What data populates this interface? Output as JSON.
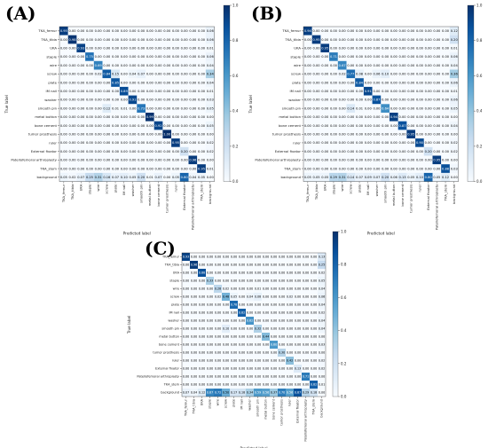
{
  "panels": [
    {
      "label": "(A)"
    },
    {
      "label": "(B)"
    },
    {
      "label": "(C)"
    }
  ],
  "chart_data": [
    {
      "type": "heatmap",
      "panel": "(A)",
      "xlabel": "Predicted label",
      "ylabel": "True label",
      "labels": [
        "TKA_femur",
        "TKA_tibia",
        "UKA",
        "staple",
        "wire",
        "screw",
        "plate",
        "IM nail",
        "washer",
        "smooth pin",
        "metal button",
        "bone cement",
        "tumor prosthesis",
        "ruler",
        "External fixator",
        "Patellofemoral arthroplasty",
        "TKA_stem",
        "background"
      ],
      "colorbar_ticks": [
        0.0,
        0.2,
        0.4,
        0.6,
        0.8,
        1.0
      ],
      "matrix": [
        [
          0.95,
          0,
          0,
          0,
          0,
          0,
          0,
          0,
          0,
          0,
          0,
          0,
          0,
          0,
          0,
          0,
          0,
          0.06
        ],
        [
          0,
          0.98,
          0,
          0,
          0,
          0,
          0,
          0,
          0,
          0,
          0,
          0,
          0,
          0,
          0,
          0,
          0,
          0.06
        ],
        [
          0,
          0,
          0.93,
          0,
          0,
          0,
          0,
          0,
          0,
          0,
          0,
          0,
          0,
          0,
          0,
          0,
          0,
          0.01
        ],
        [
          0,
          0,
          0,
          0.75,
          0,
          0,
          0,
          0,
          0,
          0,
          0,
          0,
          0,
          0,
          0,
          0,
          0,
          0.06
        ],
        [
          0,
          0,
          0,
          0,
          0.69,
          0,
          0,
          0,
          0,
          0,
          0,
          0,
          0,
          0,
          0,
          0,
          0,
          0.04
        ],
        [
          0,
          0,
          0,
          0,
          0.02,
          0.84,
          0.15,
          0,
          0.04,
          0.07,
          0,
          0,
          0,
          0,
          0,
          0,
          0,
          0.34
        ],
        [
          0,
          0,
          0,
          0,
          0,
          0,
          0.85,
          0,
          0,
          0,
          0,
          0,
          0,
          0,
          0,
          0,
          0,
          0.04
        ],
        [
          0,
          0,
          0,
          0,
          0,
          0,
          0,
          0.89,
          0,
          0,
          0,
          0,
          0,
          0,
          0,
          0,
          0,
          0.01
        ],
        [
          0,
          0,
          0,
          0,
          0,
          0,
          0,
          0,
          0.91,
          0,
          0,
          0,
          0,
          0,
          0,
          0,
          0,
          0.03
        ],
        [
          0,
          0,
          0,
          0,
          0,
          0.12,
          0.01,
          0.01,
          0,
          0.73,
          0,
          0,
          0,
          0,
          0,
          0,
          0,
          0.05
        ],
        [
          0,
          0,
          0,
          0,
          0,
          0,
          0,
          0,
          0,
          0,
          0.99,
          0,
          0,
          0,
          0,
          0,
          0,
          0
        ],
        [
          0,
          0,
          0,
          0,
          0,
          0,
          0,
          0,
          0,
          0,
          0,
          0.92,
          0,
          0,
          0,
          0,
          0,
          0.05
        ],
        [
          0,
          0,
          0,
          0,
          0,
          0,
          0,
          0,
          0,
          0,
          0,
          0,
          1.0,
          0,
          0,
          0,
          0,
          0
        ],
        [
          0,
          0,
          0,
          0,
          0,
          0,
          0,
          0,
          0,
          0,
          0,
          0,
          0,
          0.95,
          0,
          0,
          0,
          0.02
        ],
        [
          0,
          0,
          0,
          0,
          0,
          0,
          0,
          0,
          0,
          0,
          0,
          0,
          0,
          0,
          0.2,
          0,
          0,
          0.02
        ],
        [
          0,
          0,
          0,
          0,
          0,
          0,
          0,
          0,
          0,
          0,
          0,
          0,
          0,
          0,
          0,
          0.96,
          0,
          0
        ],
        [
          0,
          0,
          0,
          0,
          0,
          0,
          0,
          0,
          0,
          0,
          0,
          0,
          0,
          0,
          0,
          0,
          0.95,
          0.01
        ],
        [
          0.05,
          0.02,
          0.07,
          0.25,
          0.31,
          0.16,
          0.07,
          0.1,
          0.05,
          0.2,
          0.01,
          0.07,
          0,
          0.05,
          0.8,
          0.04,
          0.05,
          0
        ]
      ]
    },
    {
      "type": "heatmap",
      "panel": "(B)",
      "xlabel": "Predicted label",
      "ylabel": "True label",
      "labels": [
        "TKA_femur",
        "TKA_tibia",
        "UKA",
        "staple",
        "wire",
        "screw",
        "plate",
        "IM nail",
        "washer",
        "smooth pin",
        "metal button",
        "bone cement",
        "tumor prosthesis",
        "ruler",
        "External fixator",
        "Patellofemoral arthroplasty",
        "TKA_stem",
        "background"
      ],
      "colorbar_ticks": [
        0.0,
        0.2,
        0.4,
        0.6,
        0.8,
        1.0
      ],
      "matrix": [
        [
          0.94,
          0,
          0,
          0,
          0,
          0,
          0,
          0,
          0,
          0,
          0,
          0,
          0,
          0,
          0,
          0,
          0,
          0.12
        ],
        [
          0,
          0.95,
          0,
          0,
          0,
          0,
          0,
          0,
          0,
          0,
          0,
          0,
          0,
          0,
          0,
          0,
          0,
          0.2
        ],
        [
          0,
          0,
          0.95,
          0,
          0,
          0,
          0,
          0,
          0,
          0,
          0,
          0,
          0,
          0,
          0,
          0,
          0,
          0.01
        ],
        [
          0,
          0,
          0,
          0.71,
          0,
          0,
          0,
          0,
          0,
          0,
          0,
          0,
          0,
          0,
          0,
          0,
          0,
          0.06
        ],
        [
          0,
          0,
          0,
          0,
          0.67,
          0,
          0,
          0,
          0,
          0,
          0,
          0,
          0,
          0,
          0,
          0,
          0,
          0.04
        ],
        [
          0,
          0,
          0,
          0,
          0.02,
          0.77,
          0.08,
          0,
          0.06,
          0.1,
          0,
          0,
          0,
          0,
          0,
          0,
          0,
          0.36
        ],
        [
          0,
          0,
          0,
          0,
          0,
          0,
          0.84,
          0,
          0,
          0,
          0,
          0,
          0,
          0,
          0,
          0,
          0,
          0.06
        ],
        [
          0,
          0,
          0,
          0,
          0,
          0,
          0,
          0.91,
          0,
          0,
          0,
          0,
          0,
          0,
          0,
          0,
          0,
          0.01
        ],
        [
          0,
          0,
          0,
          0,
          0,
          0,
          0,
          0,
          0.87,
          0,
          0,
          0,
          0,
          0,
          0,
          0,
          0,
          0.06
        ],
        [
          0,
          0,
          0,
          0,
          0,
          0.14,
          0.01,
          0,
          0,
          0.64,
          0,
          0,
          0,
          0,
          0,
          0,
          0,
          0.05
        ],
        [
          0,
          0,
          0,
          0,
          0,
          0,
          0,
          0,
          0,
          0,
          0.94,
          0,
          0,
          0,
          0,
          0,
          0,
          0
        ],
        [
          0,
          0,
          0,
          0,
          0,
          0,
          0,
          0,
          0,
          0,
          0,
          0.87,
          0,
          0,
          0,
          0,
          0,
          0.04
        ],
        [
          0,
          0,
          0,
          0,
          0,
          0,
          0,
          0,
          0,
          0,
          0,
          0,
          0.95,
          0,
          0,
          0,
          0,
          0
        ],
        [
          0,
          0,
          0,
          0,
          0,
          0,
          0,
          0,
          0,
          0,
          0,
          0,
          0,
          0.9,
          0,
          0,
          0,
          0.02
        ],
        [
          0,
          0,
          0,
          0,
          0,
          0,
          0,
          0,
          0,
          0,
          0,
          0,
          0,
          0,
          0.2,
          0,
          0,
          0.02
        ],
        [
          0,
          0,
          0,
          0,
          0,
          0,
          0,
          0,
          0,
          0,
          0,
          0,
          0,
          0,
          0,
          0.95,
          0,
          0
        ],
        [
          0,
          0,
          0,
          0,
          0,
          0,
          0,
          0,
          0,
          0,
          0,
          0,
          0,
          0,
          0,
          0,
          0.88,
          0.03
        ],
        [
          0.05,
          0.05,
          0.05,
          0.29,
          0.31,
          0.14,
          0.07,
          0.09,
          0.07,
          0.2,
          0.06,
          0.13,
          0.05,
          0.1,
          0.8,
          0.05,
          0.12,
          0
        ]
      ]
    },
    {
      "type": "heatmap",
      "panel": "(C)",
      "xlabel": "Predicted label",
      "ylabel": "True label",
      "labels": [
        "TKA_femur",
        "TKA_tibia",
        "UKA",
        "staple",
        "wire",
        "screw",
        "plate",
        "IM nail",
        "washer",
        "smooth pin",
        "metal button",
        "bone cement",
        "tumor prosthesis",
        "ruler",
        "External fixator",
        "Patellofemoral arthroplasty",
        "TKA_stem",
        "background"
      ],
      "colorbar_ticks": [
        0.0,
        0.2,
        0.4,
        0.6,
        0.8,
        1.0
      ],
      "matrix": [
        [
          0.93,
          0,
          0,
          0,
          0,
          0,
          0,
          0,
          0,
          0,
          0,
          0,
          0,
          0,
          0,
          0,
          0,
          0.13
        ],
        [
          0,
          0.96,
          0,
          0,
          0,
          0,
          0,
          0,
          0,
          0,
          0,
          0,
          0,
          0,
          0,
          0,
          0,
          0.25
        ],
        [
          0,
          0,
          0.88,
          0,
          0,
          0,
          0,
          0,
          0,
          0,
          0,
          0,
          0,
          0,
          0,
          0,
          0,
          0.02
        ],
        [
          0,
          0,
          0,
          0.33,
          0,
          0,
          0,
          0,
          0,
          0,
          0,
          0,
          0,
          0,
          0,
          0,
          0,
          0.05
        ],
        [
          0,
          0,
          0,
          0,
          0.28,
          0.02,
          0,
          0,
          0,
          0.01,
          0,
          0,
          0,
          0,
          0,
          0,
          0,
          0.04
        ],
        [
          0,
          0,
          0,
          0,
          0.02,
          0.48,
          0.05,
          0,
          0.04,
          0.08,
          0,
          0,
          0,
          0.02,
          0,
          0,
          0,
          0.06
        ],
        [
          0,
          0,
          0,
          0,
          0,
          0,
          0.78,
          0,
          0,
          0,
          0,
          0,
          0,
          0,
          0,
          0,
          0,
          0.04
        ],
        [
          0,
          0,
          0,
          0,
          0,
          0,
          0,
          0.82,
          0,
          0,
          0,
          0,
          0,
          0,
          0,
          0,
          0,
          0.02
        ],
        [
          0,
          0,
          0,
          0,
          0,
          0,
          0,
          0,
          0.62,
          0,
          0,
          0,
          0,
          0,
          0,
          0,
          0,
          0.04
        ],
        [
          0,
          0,
          0,
          0,
          0,
          0.1,
          0,
          0,
          0,
          0.32,
          0,
          0,
          0,
          0,
          0,
          0,
          0,
          0.04
        ],
        [
          0,
          0,
          0,
          0,
          0,
          0,
          0,
          0,
          0,
          0,
          0.44,
          0,
          0,
          0,
          0,
          0,
          0,
          0
        ],
        [
          0,
          0,
          0,
          0,
          0,
          0,
          0,
          0,
          0,
          0,
          0,
          0.6,
          0,
          0,
          0,
          0,
          0,
          0.03
        ],
        [
          0,
          0,
          0,
          0,
          0,
          0,
          0,
          0,
          0,
          0,
          0,
          0,
          0.3,
          0,
          0,
          0,
          0,
          0
        ],
        [
          0,
          0,
          0,
          0,
          0,
          0,
          0,
          0,
          0,
          0,
          0,
          0,
          0,
          0.42,
          0,
          0,
          0,
          0.02
        ],
        [
          0,
          0,
          0,
          0,
          0,
          0,
          0,
          0,
          0,
          0,
          0,
          0,
          0,
          0,
          0.13,
          0,
          0,
          0.02
        ],
        [
          0,
          0,
          0,
          0,
          0,
          0,
          0,
          0,
          0,
          0,
          0,
          0,
          0,
          0,
          0,
          0.71,
          0,
          0
        ],
        [
          0,
          0,
          0,
          0,
          0,
          0,
          0,
          0,
          0,
          0,
          0,
          0,
          0,
          0,
          0,
          0,
          0.82,
          0.01
        ],
        [
          0.07,
          0.04,
          0.12,
          0.67,
          0.72,
          0.5,
          0.17,
          0.18,
          0.34,
          0.59,
          0.56,
          0.37,
          0.7,
          0.56,
          0.87,
          0.29,
          0.18,
          0
        ]
      ]
    }
  ]
}
